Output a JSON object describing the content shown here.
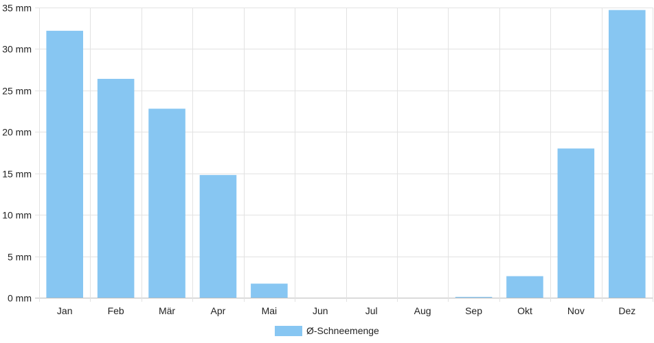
{
  "chart_data": {
    "type": "bar",
    "categories": [
      "Jan",
      "Feb",
      "Mär",
      "Apr",
      "Mai",
      "Jun",
      "Jul",
      "Aug",
      "Sep",
      "Okt",
      "Nov",
      "Dez"
    ],
    "series": [
      {
        "name": "Ø-Schneemenge",
        "values": [
          32.2,
          26.4,
          22.8,
          14.8,
          1.7,
          0,
          0,
          0,
          0.1,
          2.6,
          18.0,
          34.7
        ],
        "color": "#87c6f2"
      }
    ],
    "ylim": [
      0,
      35
    ],
    "y_ticks": [
      0,
      5,
      10,
      15,
      20,
      25,
      30,
      35
    ],
    "y_unit": "mm",
    "grid": true,
    "legend_position": "bottom-center"
  }
}
